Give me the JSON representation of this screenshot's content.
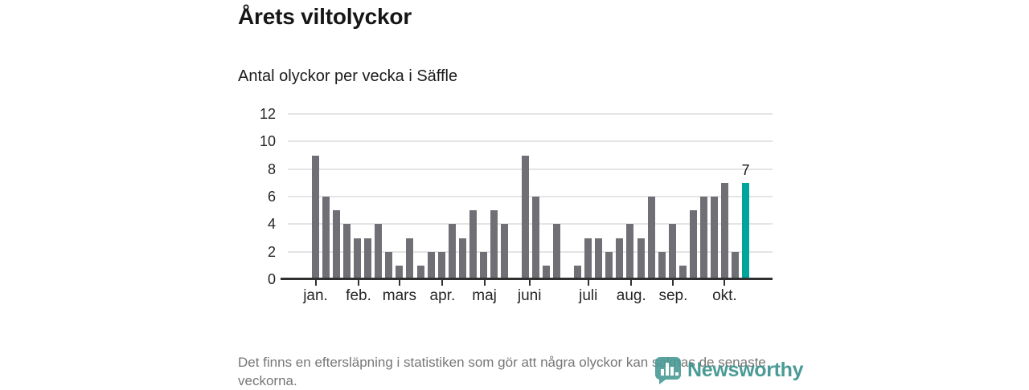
{
  "header": {
    "title": "Årets viltolyckor",
    "subtitle": "Antal olyckor per vecka i Säffle"
  },
  "footnote": "Det finns en eftersläpning i statistiken som gör att några olyckor kan saknas de senaste veckorna.",
  "branding": {
    "logo_text": "Newsworthy",
    "logo_color": "#37918b"
  },
  "chart_data": {
    "type": "bar",
    "title": "Årets viltolyckor",
    "subtitle": "Antal olyckor per vecka i Säffle",
    "x_unit": "vecka",
    "x_range_weeks": [
      1,
      42
    ],
    "values": [
      9,
      6,
      5,
      4,
      3,
      3,
      4,
      2,
      1,
      3,
      1,
      2,
      2,
      4,
      3,
      5,
      2,
      5,
      4,
      0,
      9,
      6,
      1,
      4,
      0,
      1,
      3,
      3,
      2,
      3,
      4,
      3,
      6,
      2,
      4,
      1,
      5,
      6,
      6,
      7,
      2,
      7
    ],
    "highlight_index": 41,
    "highlight_label": "7",
    "ylim": [
      0,
      12
    ],
    "y_ticks": [
      0,
      2,
      4,
      6,
      8,
      10,
      12
    ],
    "grid": true,
    "bar_color": "#706f75",
    "highlight_color": "#00a49a",
    "axis_color": "#303030",
    "gridline_color": "#e4e4e4",
    "month_ticks": [
      {
        "label": "jan.",
        "week": 1
      },
      {
        "label": "feb.",
        "week": 5.1
      },
      {
        "label": "mars",
        "week": 9
      },
      {
        "label": "apr.",
        "week": 13.1
      },
      {
        "label": "maj",
        "week": 17.1
      },
      {
        "label": "juni",
        "week": 21.4
      },
      {
        "label": "juli",
        "week": 27
      },
      {
        "label": "aug.",
        "week": 31.1
      },
      {
        "label": "sep.",
        "week": 35.1
      },
      {
        "label": "okt.",
        "week": 40
      }
    ]
  }
}
